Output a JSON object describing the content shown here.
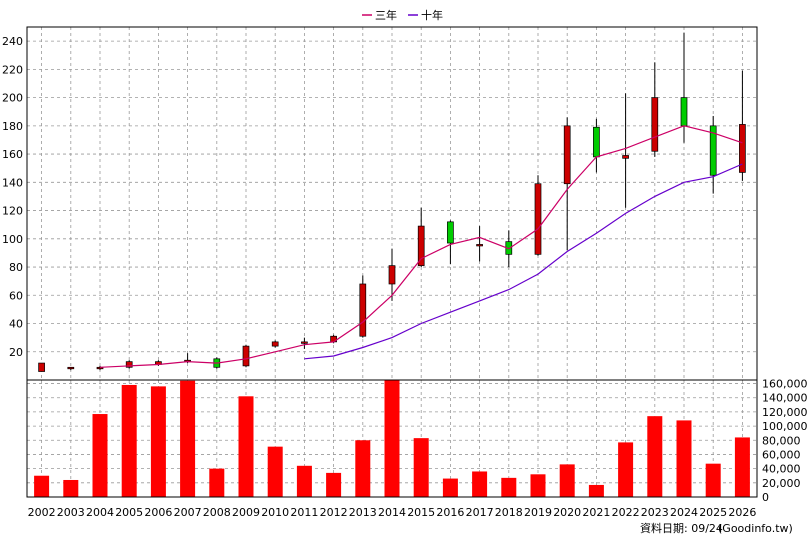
{
  "chart_data": [
    {
      "type": "candlestick",
      "legend": [
        {
          "name": "三年",
          "color": "#cc0066"
        },
        {
          "name": "十年",
          "color": "#6600cc"
        }
      ],
      "ylim": [
        0,
        250
      ],
      "yticks": [
        20,
        40,
        60,
        80,
        100,
        120,
        140,
        160,
        180,
        200,
        220,
        240
      ],
      "grid": true,
      "categories": [
        "2002",
        "2003",
        "2004",
        "2005",
        "2006",
        "2007",
        "2008",
        "2009",
        "2010",
        "2011",
        "2012",
        "2013",
        "2014",
        "2015",
        "2016",
        "2017",
        "2018",
        "2019",
        "2020",
        "2021",
        "2022",
        "2023",
        "2024",
        "2025",
        "2026"
      ],
      "candles": [
        {
          "open": 12,
          "close": 6,
          "high": 12,
          "low": 6,
          "color": "#cc0000"
        },
        {
          "open": 9,
          "close": 8,
          "high": 9,
          "low": 7,
          "color": "#cc0000"
        },
        {
          "open": 9,
          "close": 8,
          "high": 10,
          "low": 7,
          "color": "#cc0000"
        },
        {
          "open": 13,
          "close": 9,
          "high": 14,
          "low": 8,
          "color": "#cc0000"
        },
        {
          "open": 13,
          "close": 11,
          "high": 14,
          "low": 10,
          "color": "#cc0000"
        },
        {
          "open": 14,
          "close": 13,
          "high": 19,
          "low": 12,
          "color": "#cc0000"
        },
        {
          "open": 9,
          "close": 15,
          "high": 16,
          "low": 8,
          "color": "#00cc00"
        },
        {
          "open": 24,
          "close": 10,
          "high": 25,
          "low": 9,
          "color": "#cc0000"
        },
        {
          "open": 27,
          "close": 24,
          "high": 28,
          "low": 23,
          "color": "#cc0000"
        },
        {
          "open": 27,
          "close": 26,
          "high": 30,
          "low": 22,
          "color": "#cc0000"
        },
        {
          "open": 31,
          "close": 27,
          "high": 32,
          "low": 26,
          "color": "#cc0000"
        },
        {
          "open": 68,
          "close": 31,
          "high": 74,
          "low": 30,
          "color": "#cc0000"
        },
        {
          "open": 81,
          "close": 68,
          "high": 93,
          "low": 56,
          "color": "#cc0000"
        },
        {
          "open": 109,
          "close": 81,
          "high": 122,
          "low": 80,
          "color": "#cc0000"
        },
        {
          "open": 97,
          "close": 112,
          "high": 113,
          "low": 82,
          "color": "#00cc00"
        },
        {
          "open": 96,
          "close": 95,
          "high": 109,
          "low": 84,
          "color": "#cc0000"
        },
        {
          "open": 89,
          "close": 98,
          "high": 106,
          "low": 80,
          "color": "#00cc00"
        },
        {
          "open": 139,
          "close": 89,
          "high": 145,
          "low": 88,
          "color": "#cc0000"
        },
        {
          "open": 180,
          "close": 139,
          "high": 186,
          "low": 92,
          "color": "#cc0000"
        },
        {
          "open": 158,
          "close": 179,
          "high": 185,
          "low": 147,
          "color": "#00cc00"
        },
        {
          "open": 159,
          "close": 157,
          "high": 203,
          "low": 122,
          "color": "#cc0000"
        },
        {
          "open": 200,
          "close": 162,
          "high": 225,
          "low": 158,
          "color": "#cc0000"
        },
        {
          "open": 180,
          "close": 200,
          "high": 246,
          "low": 168,
          "color": "#00cc00"
        },
        {
          "open": 145,
          "close": 180,
          "high": 187,
          "low": 132,
          "color": "#00cc00"
        },
        {
          "open": 181,
          "close": 147,
          "high": 219,
          "low": 141,
          "color": "#cc0000"
        }
      ],
      "series": [
        {
          "name": "三年",
          "color": "#cc0066",
          "values": [
            null,
            null,
            9,
            10,
            11,
            13,
            12,
            15,
            20,
            25,
            27,
            41,
            60,
            86,
            96,
            101,
            93,
            107,
            135,
            158,
            164,
            172,
            180,
            175,
            168
          ]
        },
        {
          "name": "十年",
          "color": "#6600cc",
          "values": [
            null,
            null,
            null,
            null,
            null,
            null,
            null,
            null,
            null,
            15,
            17,
            23,
            30,
            40,
            48,
            56,
            64,
            75,
            91,
            104,
            118,
            130,
            140,
            144,
            153
          ]
        }
      ]
    },
    {
      "type": "bar",
      "ylim": [
        0,
        165000
      ],
      "yticks": [
        "0",
        "20,000",
        "40,000",
        "60,000",
        "80,000",
        "100,000",
        "120,000",
        "140,000",
        "160,000"
      ],
      "ytick_values": [
        0,
        20000,
        40000,
        60000,
        80000,
        100000,
        120000,
        140000,
        160000
      ],
      "color": "#ff0000",
      "values": [
        30000,
        24000,
        117000,
        158000,
        156000,
        164000,
        40000,
        142000,
        71000,
        44000,
        34000,
        80000,
        168000,
        83000,
        26000,
        36000,
        27000,
        32000,
        46000,
        17000,
        77000,
        114000,
        108000,
        47000,
        84000
      ]
    }
  ],
  "footer": {
    "source_text": "資料日期: 09/24",
    "credit_text": "(Goodinfo.tw)"
  }
}
